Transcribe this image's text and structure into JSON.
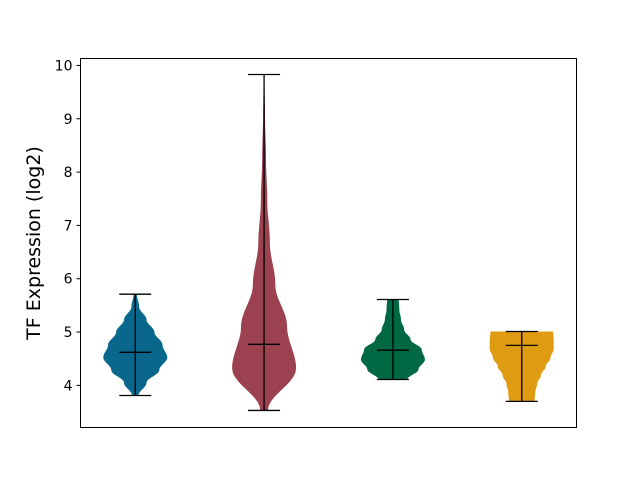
{
  "chart_data": {
    "type": "violin",
    "title": "",
    "xlabel": "",
    "ylabel": "TF Expression (log2)",
    "ylim": [
      3.21,
      10.13
    ],
    "xlim": [
      0.575,
      4.425
    ],
    "yticks": [
      4,
      5,
      6,
      7,
      8,
      9,
      10
    ],
    "grid": false,
    "series": [
      {
        "position": 1,
        "color": "#08678a",
        "min": 3.81,
        "max": 5.71,
        "median": 4.62,
        "density": [
          0.1,
          0.35,
          0.75,
          1.0,
          0.85,
          0.6,
          0.35,
          0.12,
          0.05
        ]
      },
      {
        "position": 2,
        "color": "#9b4150",
        "min": 3.53,
        "max": 9.83,
        "median": 4.77,
        "density": [
          0.12,
          1.0,
          0.72,
          0.35,
          0.18,
          0.1,
          0.06,
          0.03,
          0.01
        ]
      },
      {
        "position": 3,
        "color": "#006944",
        "min": 4.11,
        "max": 5.61,
        "median": 4.66,
        "density": [
          0.45,
          0.8,
          1.0,
          0.9,
          0.55,
          0.35,
          0.25,
          0.2,
          0.18
        ]
      },
      {
        "position": 4,
        "color": "#df9b12",
        "min": 3.7,
        "max": 5.01,
        "median": 4.75,
        "density": [
          0.4,
          0.42,
          0.48,
          0.6,
          0.75,
          0.9,
          1.0,
          1.0,
          0.98
        ]
      }
    ]
  }
}
